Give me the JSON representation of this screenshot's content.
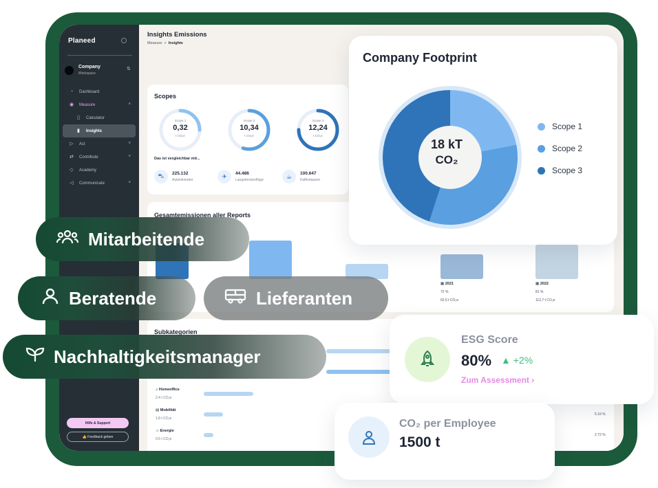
{
  "sidebar": {
    "logo": "Planeed",
    "workspace": {
      "name": "Company",
      "sub": "Workspace"
    },
    "items": [
      {
        "label": "Dashboard",
        "icon": "dashboard-icon"
      },
      {
        "label": "Measure",
        "icon": "measure-icon"
      },
      {
        "label": "Calculator",
        "icon": "calculator-icon"
      },
      {
        "label": "Insights",
        "icon": "insights-icon"
      },
      {
        "label": "Act",
        "icon": "act-icon"
      },
      {
        "label": "Contribute",
        "icon": "contribute-icon"
      },
      {
        "label": "Academy",
        "icon": "academy-icon"
      },
      {
        "label": "Communicate",
        "icon": "communicate-icon"
      }
    ],
    "help_label": "Hilfe & Support",
    "feedback_label": "👍 Feedback geben"
  },
  "header": {
    "title": "Insights Emissions",
    "breadcrumb_root": "Measure",
    "breadcrumb_sep": ">",
    "breadcrumb_current": "Insights"
  },
  "scopes": {
    "title": "Scopes",
    "rings": [
      {
        "label": "Scope 1",
        "value": "0,32",
        "unit": "t CO₂e",
        "fraction": 0.25
      },
      {
        "label": "Scope 2",
        "value": "10,34",
        "unit": "t CO₂e",
        "fraction": 0.55
      },
      {
        "label": "Scope 3",
        "value": "12,24",
        "unit": "t CO₂e",
        "fraction": 0.75
      }
    ],
    "compare_title": "Das ist vergleichbar mit...",
    "stats": [
      {
        "value": "225.132",
        "label": "Autokilometer",
        "icon": "car-icon"
      },
      {
        "value": "44.486",
        "label": "Langstreckenflüge",
        "icon": "plane-icon"
      },
      {
        "value": "100.647",
        "label": "Kaffeetassen",
        "icon": "coffee-icon"
      }
    ]
  },
  "totals": {
    "title": "Gesamtemissionen aller Reports",
    "years": [
      {
        "year": "2021",
        "percent": "72 %",
        "value": "62,5 t CO₂e"
      },
      {
        "year": "2022",
        "percent": "81 %",
        "value": "112,7 t CO₂e"
      }
    ]
  },
  "subcategories": {
    "title": "Subkategorien",
    "items": [
      {
        "label": "Homeoffice",
        "value": "2.4 t CO₂e",
        "icon": "home-icon"
      },
      {
        "label": "Mobilität",
        "value": "1.8 t CO₂e",
        "icon": "mobility-icon"
      },
      {
        "label": "Energie",
        "value": "0.5 t CO₂e",
        "icon": "energy-icon"
      }
    ],
    "percents": [
      "5.16 %",
      "2.72 %"
    ]
  },
  "footprint": {
    "title": "Company Footprint",
    "center_value": "18 kT",
    "center_unit": "CO₂",
    "legend": [
      "Scope 1",
      "Scope 2",
      "Scope 3"
    ],
    "colors": [
      "#7fb8f0",
      "#5a9fe0",
      "#2f74b8"
    ]
  },
  "roles": {
    "mitarbeitende": "Mitarbeitende",
    "beratende": "Beratende",
    "lieferanten": "Lieferanten",
    "manager": "Nachhaltigkeitsmanager"
  },
  "esg": {
    "title": "ESG Score",
    "value": "80%",
    "trend": "+2%",
    "link": "Zum Assessment ›"
  },
  "co2": {
    "title": "CO₂ per Employee",
    "value": "1500 t"
  },
  "colors": {
    "frame": "#1b5a3b",
    "sidebar": "#262f36",
    "accent_pink": "#e68ae6",
    "chart_blue": "#2f74b8"
  }
}
